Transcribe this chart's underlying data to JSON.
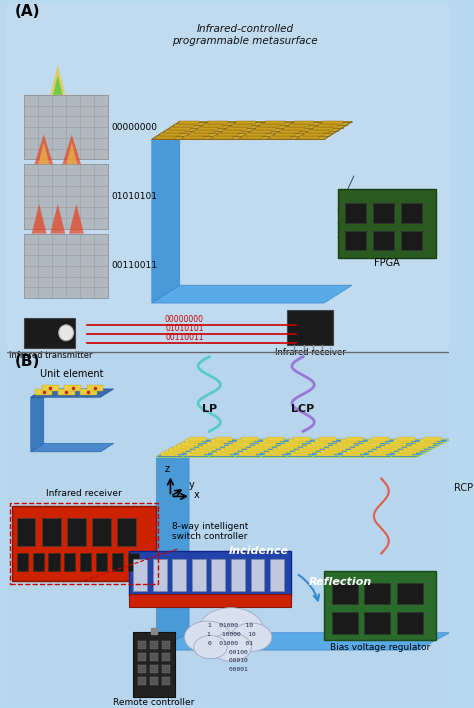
{
  "title": "Infrared-controlled programmable metasurface",
  "panel_A_label": "(A)",
  "panel_B_label": "(B)",
  "bg_color_top": "#b8d8f0",
  "bg_color_bottom": "#c5e0f0",
  "panel_A_texts": {
    "title": "Infrared-controlled\nprogrammable metasurface",
    "codes": [
      "00000000",
      "01010101",
      "00110011"
    ],
    "ir_transmitter": "Infrared transmitter",
    "ir_receiver": "Infrared receiver",
    "fpga": "FPGA",
    "signal_codes": [
      "00000000",
      "01010101",
      "00110011"
    ]
  },
  "panel_B_texts": {
    "unit_element": "Unit element",
    "lp": "LP",
    "lcp": "LCP",
    "rcp": "RCP",
    "incidence": "Incidence",
    "reflection": "Reflection",
    "ir_receiver": "Infrared receiver",
    "switch": "8-way intelligent\nswitch controller",
    "bias": "Bias voltage regulator",
    "remote": "Remote controller",
    "axes": [
      "z",
      "y",
      "x"
    ]
  },
  "colors": {
    "panel_divider": "#888888",
    "text_dark": "#111111",
    "text_blue": "#1a3a6e",
    "signal_red": "#cc0000",
    "metasurface_gold": "#c8a830",
    "metasurface_blue": "#4a90c8",
    "unit_blue": "#3a6aaa",
    "unit_yellow": "#e8d040",
    "receiver_red": "#cc2200",
    "switch_blue": "#2244aa",
    "cloud_gray": "#d0d8e8",
    "board_green": "#2a6a2a",
    "arrow_blue": "#3a8acc"
  }
}
